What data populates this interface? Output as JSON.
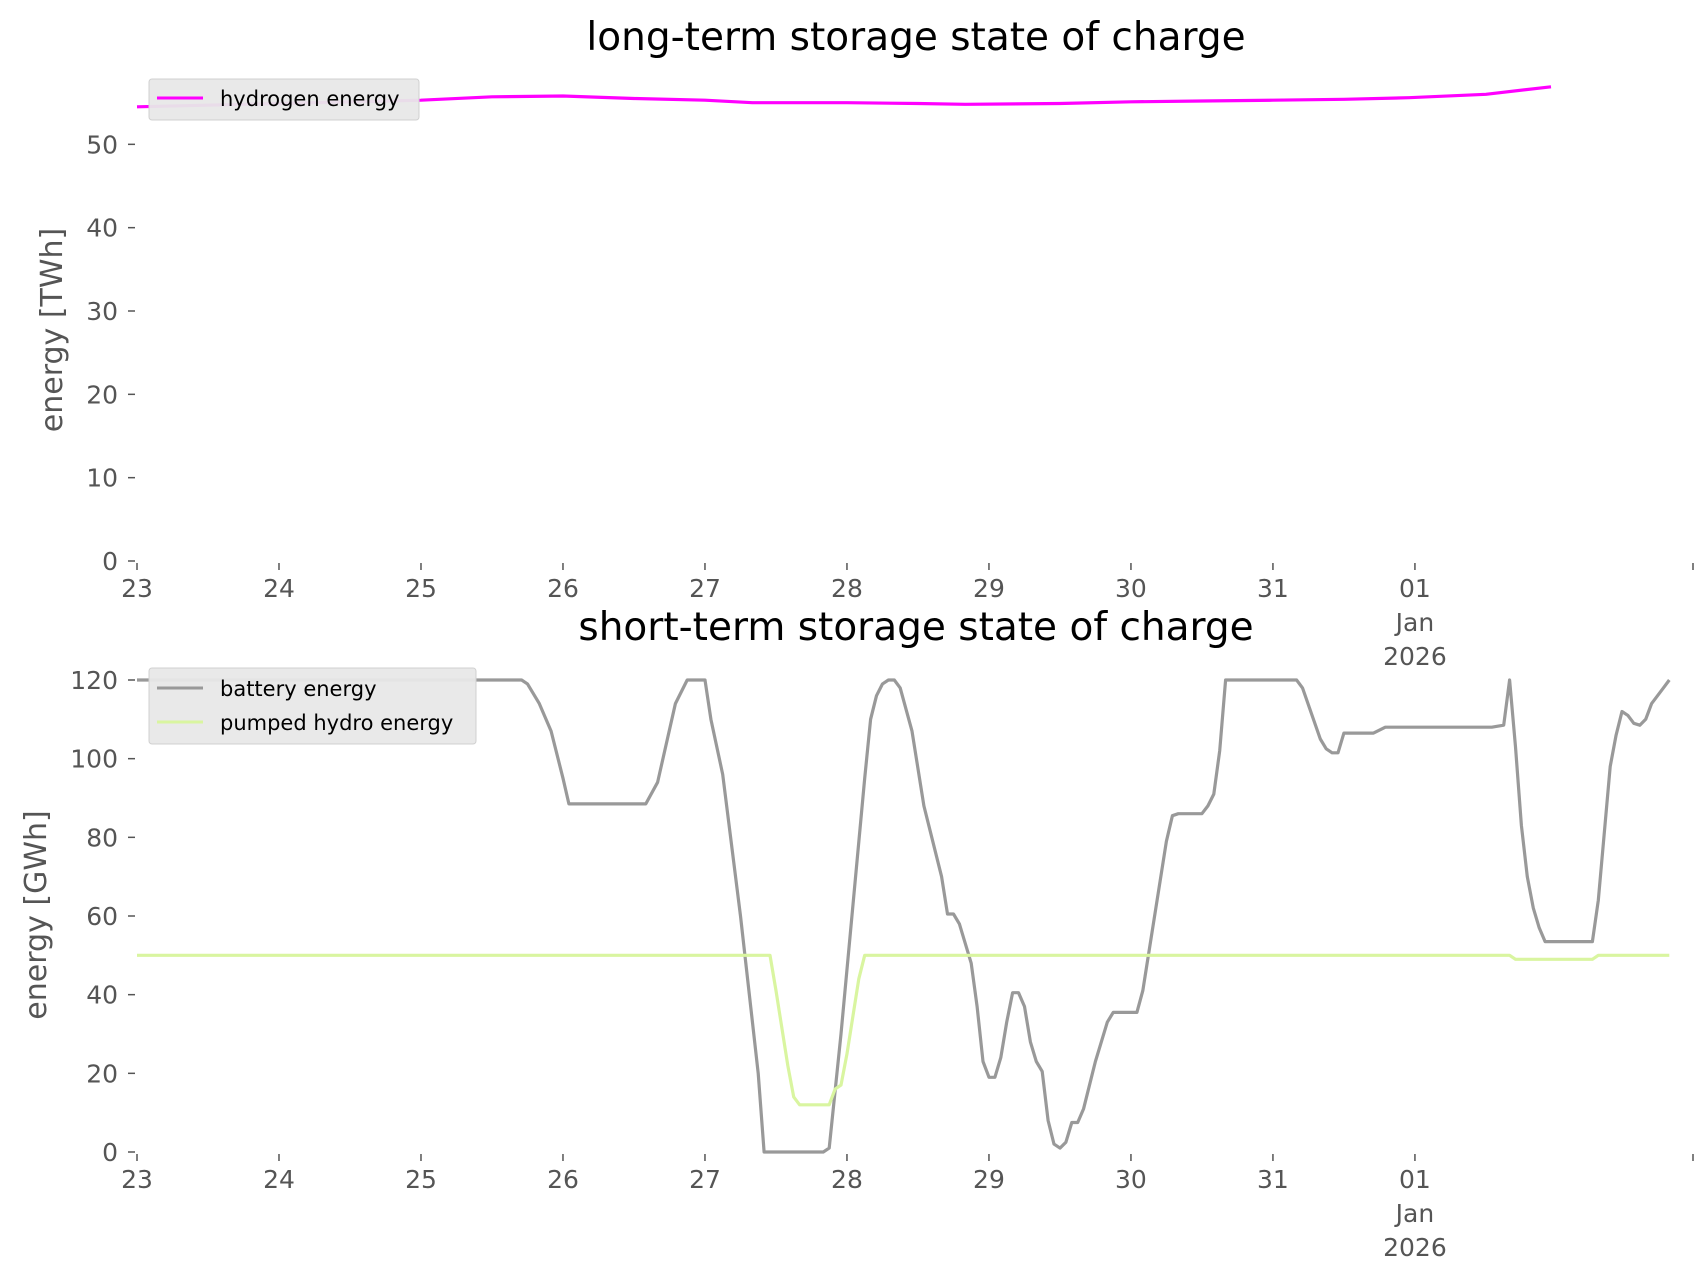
{
  "chart_data": [
    {
      "type": "line",
      "title": "long-term storage state of charge",
      "xlabel": "",
      "ylabel": "energy [TWh]",
      "x_tick_labels": [
        [
          "23"
        ],
        [
          "24"
        ],
        [
          "25"
        ],
        [
          "26"
        ],
        [
          "27"
        ],
        [
          "28"
        ],
        [
          "29"
        ],
        [
          "30"
        ],
        [
          "31"
        ],
        [
          "01",
          "Jan",
          "2026"
        ]
      ],
      "ylim": [
        0,
        57
      ],
      "y_ticks": [
        0,
        10,
        20,
        30,
        40,
        50
      ],
      "grid": false,
      "legend_position": "top-left",
      "series": [
        {
          "name": "hydrogen energy",
          "color": "#ff00ff",
          "points": [
            [
              "2025-12-23 00:00",
              54.5
            ],
            [
              "2025-12-24 00:00",
              54.9
            ],
            [
              "2025-12-25 00:00",
              55.3
            ],
            [
              "2025-12-25 12:00",
              55.7
            ],
            [
              "2025-12-26 00:00",
              55.8
            ],
            [
              "2025-12-26 12:00",
              55.5
            ],
            [
              "2025-12-27 00:00",
              55.3
            ],
            [
              "2025-12-27 08:00",
              55.0
            ],
            [
              "2025-12-28 00:00",
              55.0
            ],
            [
              "2025-12-28 12:00",
              54.9
            ],
            [
              "2025-12-28 20:00",
              54.8
            ],
            [
              "2025-12-29 12:00",
              54.9
            ],
            [
              "2025-12-30 00:00",
              55.1
            ],
            [
              "2025-12-30 12:00",
              55.2
            ],
            [
              "2025-12-31 00:00",
              55.3
            ],
            [
              "2025-12-31 12:00",
              55.4
            ],
            [
              "2025-12-31 23:00",
              55.6
            ],
            [
              "2026-01-01 12:00",
              56.0
            ],
            [
              "2026-01-01 23:00",
              56.9
            ]
          ]
        }
      ]
    },
    {
      "type": "line",
      "title": "short-term storage state of charge",
      "xlabel": "",
      "ylabel": "energy [GWh]",
      "x_tick_labels": [
        [
          "23"
        ],
        [
          "24"
        ],
        [
          "25"
        ],
        [
          "26"
        ],
        [
          "27"
        ],
        [
          "28"
        ],
        [
          "29"
        ],
        [
          "30"
        ],
        [
          "31"
        ],
        [
          "01",
          "Jan",
          "2026"
        ]
      ],
      "ylim": [
        0,
        120
      ],
      "y_ticks": [
        0,
        20,
        40,
        60,
        80,
        100,
        120
      ],
      "grid": false,
      "legend_position": "top-left",
      "series": [
        {
          "name": "battery energy",
          "color": "#999999",
          "points": [
            [
              "2025-12-23 00:00",
              120
            ],
            [
              "2025-12-25 17:00",
              120
            ],
            [
              "2025-12-25 18:00",
              119
            ],
            [
              "2025-12-25 20:00",
              114
            ],
            [
              "2025-12-25 22:00",
              107
            ],
            [
              "2025-12-26 00:00",
              95
            ],
            [
              "2025-12-26 01:00",
              88.5
            ],
            [
              "2025-12-26 14:00",
              88.5
            ],
            [
              "2025-12-26 16:00",
              94
            ],
            [
              "2025-12-26 19:00",
              114
            ],
            [
              "2025-12-26 21:00",
              120
            ],
            [
              "2025-12-27 00:00",
              120
            ],
            [
              "2025-12-27 01:00",
              110
            ],
            [
              "2025-12-27 03:00",
              96
            ],
            [
              "2025-12-27 06:00",
              60
            ],
            [
              "2025-12-27 09:00",
              20
            ],
            [
              "2025-12-27 10:00",
              0
            ],
            [
              "2025-12-27 20:00",
              0
            ],
            [
              "2025-12-27 21:00",
              1
            ],
            [
              "2025-12-27 23:00",
              30
            ],
            [
              "2025-12-28 03:00",
              95
            ],
            [
              "2025-12-28 04:00",
              110
            ],
            [
              "2025-12-28 05:00",
              116
            ],
            [
              "2025-12-28 06:00",
              119
            ],
            [
              "2025-12-28 07:00",
              120
            ],
            [
              "2025-12-28 08:00",
              120
            ],
            [
              "2025-12-28 09:00",
              118
            ],
            [
              "2025-12-28 11:00",
              107
            ],
            [
              "2025-12-28 13:00",
              88
            ],
            [
              "2025-12-28 16:00",
              70
            ],
            [
              "2025-12-28 17:00",
              60.5
            ],
            [
              "2025-12-28 18:00",
              60.5
            ],
            [
              "2025-12-28 19:00",
              58
            ],
            [
              "2025-12-28 21:00",
              48
            ],
            [
              "2025-12-28 22:00",
              37
            ],
            [
              "2025-12-28 23:00",
              23
            ],
            [
              "2025-12-29 00:00",
              19
            ],
            [
              "2025-12-29 01:00",
              19
            ],
            [
              "2025-12-29 02:00",
              24
            ],
            [
              "2025-12-29 03:00",
              33
            ],
            [
              "2025-12-29 04:00",
              40.5
            ],
            [
              "2025-12-29 05:00",
              40.5
            ],
            [
              "2025-12-29 06:00",
              37
            ],
            [
              "2025-12-29 07:00",
              28
            ],
            [
              "2025-12-29 08:00",
              23
            ],
            [
              "2025-12-29 09:00",
              20.5
            ],
            [
              "2025-12-29 10:00",
              8
            ],
            [
              "2025-12-29 11:00",
              2
            ],
            [
              "2025-12-29 12:00",
              1
            ],
            [
              "2025-12-29 13:00",
              2.5
            ],
            [
              "2025-12-29 14:00",
              7.5
            ],
            [
              "2025-12-29 15:00",
              7.5
            ],
            [
              "2025-12-29 16:00",
              11
            ],
            [
              "2025-12-29 18:00",
              23
            ],
            [
              "2025-12-29 20:00",
              33
            ],
            [
              "2025-12-29 21:00",
              35.5
            ],
            [
              "2025-12-30 01:00",
              35.5
            ],
            [
              "2025-12-30 02:00",
              41
            ],
            [
              "2025-12-30 04:00",
              60
            ],
            [
              "2025-12-30 06:00",
              79
            ],
            [
              "2025-12-30 07:00",
              85.5
            ],
            [
              "2025-12-30 08:00",
              86
            ],
            [
              "2025-12-30 12:00",
              86
            ],
            [
              "2025-12-30 13:00",
              88
            ],
            [
              "2025-12-30 14:00",
              91
            ],
            [
              "2025-12-30 15:00",
              102
            ],
            [
              "2025-12-30 16:00",
              120
            ],
            [
              "2025-12-31 04:00",
              120
            ],
            [
              "2025-12-31 05:00",
              118
            ],
            [
              "2025-12-31 08:00",
              105
            ],
            [
              "2025-12-31 09:00",
              102.5
            ],
            [
              "2025-12-31 10:00",
              101.5
            ],
            [
              "2025-12-31 11:00",
              101.5
            ],
            [
              "2025-12-31 12:00",
              106.5
            ],
            [
              "2025-12-31 17:00",
              106.5
            ],
            [
              "2025-12-31 19:00",
              108
            ],
            [
              "2026-01-01 13:00",
              108
            ],
            [
              "2026-01-01 15:00",
              108.5
            ],
            [
              "2026-01-01 16:00",
              120
            ],
            [
              "2026-01-01 17:00",
              103
            ],
            [
              "2026-01-01 18:00",
              83
            ],
            [
              "2026-01-01 19:00",
              70
            ],
            [
              "2026-01-01 20:00",
              62
            ],
            [
              "2026-01-01 21:00",
              57
            ],
            [
              "2026-01-01 22:00",
              53.5
            ],
            [
              "2026-01-02 06:00",
              53.5
            ],
            [
              "2026-01-02 07:00",
              64
            ],
            [
              "2026-01-02 09:00",
              98
            ],
            [
              "2026-01-02 10:00",
              106
            ],
            [
              "2026-01-02 11:00",
              112
            ],
            [
              "2026-01-02 12:00",
              111
            ],
            [
              "2026-01-02 13:00",
              109
            ],
            [
              "2026-01-02 14:00",
              108.5
            ],
            [
              "2026-01-02 15:00",
              110
            ],
            [
              "2026-01-02 16:00",
              114
            ],
            [
              "2026-01-02 18:00",
              118
            ],
            [
              "2026-01-02 19:00",
              120
            ]
          ]
        },
        {
          "name": "pumped hydro energy",
          "color": "#d9f5a0",
          "points": [
            [
              "2025-12-23 00:00",
              50
            ],
            [
              "2025-12-27 11:00",
              50
            ],
            [
              "2025-12-27 12:00",
              41
            ],
            [
              "2025-12-27 14:00",
              22
            ],
            [
              "2025-12-27 15:00",
              14
            ],
            [
              "2025-12-27 16:00",
              12
            ],
            [
              "2025-12-27 21:00",
              12
            ],
            [
              "2025-12-27 22:00",
              16
            ],
            [
              "2025-12-27 23:00",
              17
            ],
            [
              "2025-12-28 00:00",
              25
            ],
            [
              "2025-12-28 02:00",
              44
            ],
            [
              "2025-12-28 03:00",
              50
            ],
            [
              "2026-01-01 16:00",
              50
            ],
            [
              "2026-01-01 17:00",
              49
            ],
            [
              "2026-01-02 06:00",
              49
            ],
            [
              "2026-01-02 07:00",
              50
            ],
            [
              "2026-01-02 19:00",
              50
            ]
          ]
        }
      ]
    }
  ]
}
